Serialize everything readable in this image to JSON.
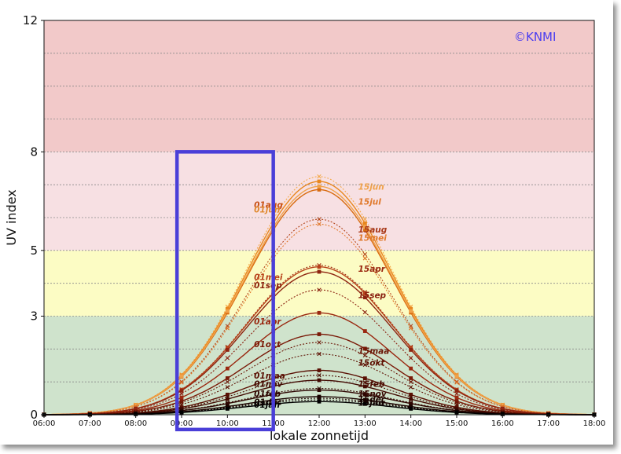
{
  "chart_data": {
    "type": "line",
    "title": "",
    "xlabel": "lokale zonnetijd",
    "ylabel": "UV index",
    "xlim": [
      6,
      18
    ],
    "ylim": [
      0,
      12
    ],
    "x_ticks": [
      "06:00",
      "07:00",
      "08:00",
      "09:00",
      "10:00",
      "11:00",
      "12:00",
      "13:00",
      "14:00",
      "15:00",
      "16:00",
      "17:00",
      "18:00"
    ],
    "y_ticks": [
      {
        "value": 0,
        "label": "0"
      },
      {
        "value": 3,
        "label": "3"
      },
      {
        "value": 5,
        "label": "5"
      },
      {
        "value": 8,
        "label": "8"
      },
      {
        "value": 12,
        "label": "12"
      }
    ],
    "grid_y": [
      1,
      2,
      3,
      4,
      5,
      6,
      7,
      8,
      9,
      10,
      11
    ],
    "bands": [
      {
        "from": 0,
        "to": 3,
        "color": "#cfe3cc"
      },
      {
        "from": 3,
        "to": 5,
        "color": "#fcfcc4"
      },
      {
        "from": 5,
        "to": 8,
        "color": "#f7e0e3"
      },
      {
        "from": 8,
        "to": 12,
        "color": "#f2c9c9"
      }
    ],
    "copyright": "©KNMI",
    "series": [
      {
        "name": "15jun",
        "peak": 7.25,
        "color": "#f5a94a",
        "dashed": true,
        "marker": "x"
      },
      {
        "name": "15jul",
        "peak": 7.1,
        "color": "#e8871e",
        "dashed": false,
        "marker": "s"
      },
      {
        "name": "01aug",
        "peak": 6.85,
        "color": "#d86b10",
        "dashed": false,
        "marker": "s"
      },
      {
        "name": "01jun",
        "peak": 6.95,
        "color": "#f0a24a",
        "dashed": false,
        "marker": "s"
      },
      {
        "name": "15aug",
        "peak": 5.95,
        "color": "#b3461c",
        "dashed": true,
        "marker": "x"
      },
      {
        "name": "15mei",
        "peak": 5.8,
        "color": "#e0782a",
        "dashed": true,
        "marker": "x"
      },
      {
        "name": "15apr",
        "peak": 4.55,
        "color": "#a23216",
        "dashed": true,
        "marker": "x"
      },
      {
        "name": "01mei",
        "peak": 4.5,
        "color": "#b8421a",
        "dashed": false,
        "marker": "s"
      },
      {
        "name": "01sep",
        "peak": 4.35,
        "color": "#8e2410",
        "dashed": false,
        "marker": "s"
      },
      {
        "name": "15sep",
        "peak": 3.8,
        "color": "#8a2010",
        "dashed": true,
        "marker": "x"
      },
      {
        "name": "01apr",
        "peak": 3.1,
        "color": "#9a2810",
        "dashed": false,
        "marker": "s"
      },
      {
        "name": "01okt",
        "peak": 2.45,
        "color": "#7a1a08",
        "dashed": false,
        "marker": "s"
      },
      {
        "name": "15maa",
        "peak": 2.2,
        "color": "#6a1606",
        "dashed": true,
        "marker": "x"
      },
      {
        "name": "15okt",
        "peak": 1.85,
        "color": "#5e1204",
        "dashed": true,
        "marker": "x"
      },
      {
        "name": "01maa",
        "peak": 1.35,
        "color": "#5a1004",
        "dashed": false,
        "marker": "s"
      },
      {
        "name": "15feb",
        "peak": 1.2,
        "color": "#4a0c02",
        "dashed": true,
        "marker": "x"
      },
      {
        "name": "01nov",
        "peak": 1.05,
        "color": "#420a02",
        "dashed": false,
        "marker": "s"
      },
      {
        "name": "15nov",
        "peak": 0.8,
        "color": "#360802",
        "dashed": true,
        "marker": "x"
      },
      {
        "name": "01feb",
        "peak": 0.75,
        "color": "#2e0602",
        "dashed": false,
        "marker": "s"
      },
      {
        "name": "15dec",
        "peak": 0.5,
        "color": "#200400",
        "dashed": true,
        "marker": "x"
      },
      {
        "name": "01dec",
        "peak": 0.55,
        "color": "#1a0300",
        "dashed": false,
        "marker": "s"
      },
      {
        "name": "15jan",
        "peak": 0.45,
        "color": "#100200",
        "dashed": true,
        "marker": "x"
      },
      {
        "name": "01jan",
        "peak": 0.4,
        "color": "#000000",
        "dashed": false,
        "marker": "s"
      }
    ],
    "labels": [
      {
        "text": "15jun",
        "x": 12.85,
        "y": 6.85,
        "color": "#f0a24a"
      },
      {
        "text": "15jul",
        "x": 12.85,
        "y": 6.4,
        "color": "#e0782a"
      },
      {
        "text": "01aug",
        "x": 10.58,
        "y": 6.3,
        "color": "#c84f14"
      },
      {
        "text": "01jun",
        "x": 10.58,
        "y": 6.15,
        "color": "#e08a30"
      },
      {
        "text": "15aug",
        "x": 12.85,
        "y": 5.55,
        "color": "#a83818"
      },
      {
        "text": "15mei",
        "x": 12.85,
        "y": 5.3,
        "color": "#e0782a"
      },
      {
        "text": "15apr",
        "x": 12.85,
        "y": 4.35,
        "color": "#9a2810"
      },
      {
        "text": "01mei",
        "x": 10.58,
        "y": 4.1,
        "color": "#b8421a"
      },
      {
        "text": "01sep",
        "x": 10.58,
        "y": 3.85,
        "color": "#8e2410"
      },
      {
        "text": "15sep",
        "x": 12.85,
        "y": 3.55,
        "color": "#8a2010"
      },
      {
        "text": "01apr",
        "x": 10.58,
        "y": 2.75,
        "color": "#9a2810"
      },
      {
        "text": "01okt",
        "x": 10.58,
        "y": 2.05,
        "color": "#7a1a08"
      },
      {
        "text": "15maa",
        "x": 12.85,
        "y": 1.85,
        "color": "#6a1606"
      },
      {
        "text": "15okt",
        "x": 12.85,
        "y": 1.5,
        "color": "#5e1204"
      },
      {
        "text": "01maa",
        "x": 10.58,
        "y": 1.1,
        "color": "#5a1004"
      },
      {
        "text": "01nov",
        "x": 10.58,
        "y": 0.85,
        "color": "#420a02"
      },
      {
        "text": "15feb",
        "x": 12.85,
        "y": 0.85,
        "color": "#4a0c02"
      },
      {
        "text": "01feb",
        "x": 10.58,
        "y": 0.55,
        "color": "#2e0602"
      },
      {
        "text": "15nov",
        "x": 12.85,
        "y": 0.55,
        "color": "#360802"
      },
      {
        "text": "15dec",
        "x": 12.85,
        "y": 0.38,
        "color": "#200400"
      },
      {
        "text": "01dec",
        "x": 10.58,
        "y": 0.3,
        "color": "#1a0300"
      },
      {
        "text": "15jan",
        "x": 12.85,
        "y": 0.28,
        "color": "#100200"
      },
      {
        "text": "01jan",
        "x": 10.58,
        "y": 0.22,
        "color": "#000000"
      }
    ],
    "highlight": {
      "x_from": 8.9,
      "x_to": 11.0,
      "y_from": -0.45,
      "y_to": 8.0,
      "color": "#4a3fd8"
    },
    "legend": "none"
  }
}
